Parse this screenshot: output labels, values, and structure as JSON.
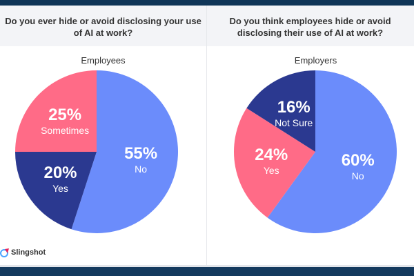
{
  "brand": "Slingshot",
  "colors": {
    "no": "#6b8cfb",
    "yes_navy": "#2b3990",
    "pink": "#ff6b87"
  },
  "chart_data": [
    {
      "type": "pie",
      "title": "Do you ever hide or avoid disclosing your use of AI at work?",
      "subtitle": "Employees",
      "slices": [
        {
          "label": "No",
          "value": 55,
          "display": "55%",
          "color": "#6b8cfb"
        },
        {
          "label": "Yes",
          "value": 20,
          "display": "20%",
          "color": "#2b3990"
        },
        {
          "label": "Sometimes",
          "value": 25,
          "display": "25%",
          "color": "#ff6b87"
        }
      ]
    },
    {
      "type": "pie",
      "title": "Do you think employees hide or avoid disclosing their use of AI at work?",
      "subtitle": "Employers",
      "slices": [
        {
          "label": "No",
          "value": 60,
          "display": "60%",
          "color": "#6b8cfb"
        },
        {
          "label": "Yes",
          "value": 24,
          "display": "24%",
          "color": "#ff6b87"
        },
        {
          "label": "Not Sure",
          "value": 16,
          "display": "16%",
          "color": "#2b3990"
        }
      ]
    }
  ]
}
